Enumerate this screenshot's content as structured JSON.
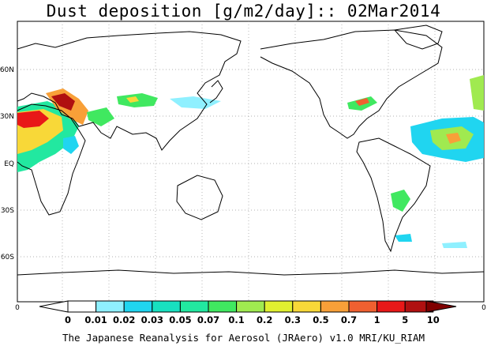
{
  "title": "Dust deposition [g/m2/day]:: 02Mar2014",
  "credit": "The Japanese Reanalysis for Aerosol (JRAero) v1.0 MRI/KU_RIAM",
  "map": {
    "projection": "equirectangular, Pacific-centred",
    "lat_labels": [
      "60N",
      "30N",
      "EQ",
      "30S",
      "60S"
    ],
    "corner_labels": [
      "0",
      "0"
    ],
    "grid": "dotted",
    "dust_regions": [
      "Sahara / North Africa",
      "Middle East",
      "Central Asia",
      "East Asia",
      "United States",
      "Tropical Atlantic",
      "South America"
    ]
  },
  "colorbar": {
    "labels": [
      "0",
      "0.01",
      "0.02",
      "0.03",
      "0.05",
      "0.07",
      "0.1",
      "0.2",
      "0.3",
      "0.5",
      "0.7",
      "1",
      "5",
      "10"
    ],
    "colors": [
      "#ffffff",
      "#ffffff",
      "#8ff0ff",
      "#20d5f0",
      "#18e0c0",
      "#22e8a0",
      "#40e860",
      "#a0ea50",
      "#e0f030",
      "#f8d838",
      "#f8a038",
      "#f06030",
      "#e81818",
      "#b01010",
      "#800000"
    ]
  }
}
